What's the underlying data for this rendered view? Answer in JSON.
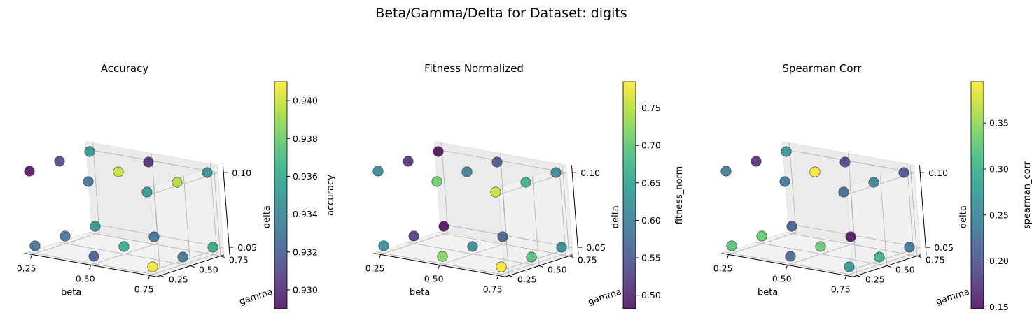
{
  "figure": {
    "suptitle": "Beta/Gamma/Delta for Dataset: digits"
  },
  "chart_data": [
    {
      "type": "scatter",
      "title": "Accuracy",
      "xlabel": "beta",
      "ylabel": "gamma",
      "zlabel": "delta",
      "colorbar_label": "accuracy",
      "colormap": "viridis",
      "clim": [
        0.929,
        0.941
      ],
      "colorbar_ticks": [
        "0.930",
        "0.932",
        "0.934",
        "0.936",
        "0.938",
        "0.940"
      ],
      "x_ticks": [
        "0.25",
        "0.50",
        "0.75"
      ],
      "y_ticks": [
        "0.25",
        "0.50",
        "0.75"
      ],
      "z_ticks": [
        "0.05",
        "0.10"
      ],
      "points": [
        {
          "beta": 0.25,
          "gamma": 0.25,
          "delta": 0.05,
          "value": 0.933
        },
        {
          "beta": 0.5,
          "gamma": 0.25,
          "delta": 0.05,
          "value": 0.932
        },
        {
          "beta": 0.75,
          "gamma": 0.25,
          "delta": 0.05,
          "value": 0.941
        },
        {
          "beta": 0.25,
          "gamma": 0.5,
          "delta": 0.05,
          "value": 0.933
        },
        {
          "beta": 0.5,
          "gamma": 0.5,
          "delta": 0.05,
          "value": 0.936
        },
        {
          "beta": 0.75,
          "gamma": 0.5,
          "delta": 0.05,
          "value": 0.933
        },
        {
          "beta": 0.25,
          "gamma": 0.75,
          "delta": 0.05,
          "value": 0.935
        },
        {
          "beta": 0.5,
          "gamma": 0.75,
          "delta": 0.05,
          "value": 0.933
        },
        {
          "beta": 0.75,
          "gamma": 0.75,
          "delta": 0.05,
          "value": 0.936
        },
        {
          "beta": 0.25,
          "gamma": 0.25,
          "delta": 0.1,
          "value": 0.929
        },
        {
          "beta": 0.5,
          "gamma": 0.25,
          "delta": 0.1,
          "value": 0.933
        },
        {
          "beta": 0.75,
          "gamma": 0.25,
          "delta": 0.1,
          "value": 0.935
        },
        {
          "beta": 0.25,
          "gamma": 0.5,
          "delta": 0.1,
          "value": 0.931
        },
        {
          "beta": 0.5,
          "gamma": 0.5,
          "delta": 0.1,
          "value": 0.94
        },
        {
          "beta": 0.75,
          "gamma": 0.5,
          "delta": 0.1,
          "value": 0.9395
        },
        {
          "beta": 0.25,
          "gamma": 0.75,
          "delta": 0.1,
          "value": 0.935
        },
        {
          "beta": 0.5,
          "gamma": 0.75,
          "delta": 0.1,
          "value": 0.93
        },
        {
          "beta": 0.75,
          "gamma": 0.75,
          "delta": 0.1,
          "value": 0.9345
        }
      ]
    },
    {
      "type": "scatter",
      "title": "Fitness Normalized",
      "xlabel": "beta",
      "ylabel": "gamma",
      "zlabel": "delta",
      "colorbar_label": "fitness_norm",
      "colormap": "viridis",
      "clim": [
        0.482,
        0.785
      ],
      "colorbar_ticks": [
        "0.50",
        "0.55",
        "0.60",
        "0.65",
        "0.70",
        "0.75"
      ],
      "x_ticks": [
        "0.25",
        "0.50",
        "0.75"
      ],
      "y_ticks": [
        "0.25",
        "0.50",
        "0.75"
      ],
      "z_ticks": [
        "0.05",
        "0.10"
      ],
      "points": [
        {
          "beta": 0.25,
          "gamma": 0.25,
          "delta": 0.05,
          "value": 0.62
        },
        {
          "beta": 0.5,
          "gamma": 0.25,
          "delta": 0.05,
          "value": 0.72
        },
        {
          "beta": 0.75,
          "gamma": 0.25,
          "delta": 0.05,
          "value": 0.785
        },
        {
          "beta": 0.25,
          "gamma": 0.5,
          "delta": 0.05,
          "value": 0.52
        },
        {
          "beta": 0.5,
          "gamma": 0.5,
          "delta": 0.05,
          "value": 0.61
        },
        {
          "beta": 0.75,
          "gamma": 0.5,
          "delta": 0.05,
          "value": 0.69
        },
        {
          "beta": 0.25,
          "gamma": 0.75,
          "delta": 0.05,
          "value": 0.482
        },
        {
          "beta": 0.5,
          "gamma": 0.75,
          "delta": 0.05,
          "value": 0.56
        },
        {
          "beta": 0.75,
          "gamma": 0.75,
          "delta": 0.05,
          "value": 0.62
        },
        {
          "beta": 0.25,
          "gamma": 0.25,
          "delta": 0.1,
          "value": 0.61
        },
        {
          "beta": 0.5,
          "gamma": 0.25,
          "delta": 0.1,
          "value": 0.71
        },
        {
          "beta": 0.75,
          "gamma": 0.25,
          "delta": 0.1,
          "value": 0.76
        },
        {
          "beta": 0.25,
          "gamma": 0.5,
          "delta": 0.1,
          "value": 0.51
        },
        {
          "beta": 0.5,
          "gamma": 0.5,
          "delta": 0.1,
          "value": 0.6
        },
        {
          "beta": 0.75,
          "gamma": 0.5,
          "delta": 0.1,
          "value": 0.67
        },
        {
          "beta": 0.25,
          "gamma": 0.75,
          "delta": 0.1,
          "value": 0.482
        },
        {
          "beta": 0.5,
          "gamma": 0.75,
          "delta": 0.1,
          "value": 0.55
        },
        {
          "beta": 0.75,
          "gamma": 0.75,
          "delta": 0.1,
          "value": 0.61
        }
      ]
    },
    {
      "type": "scatter",
      "title": "Spearman Corr",
      "xlabel": "beta",
      "ylabel": "gamma",
      "zlabel": "delta",
      "colorbar_label": "spearman_corr",
      "colormap": "viridis",
      "clim": [
        0.148,
        0.395
      ],
      "colorbar_ticks": [
        "0.15",
        "0.20",
        "0.25",
        "0.30",
        "0.35"
      ],
      "x_ticks": [
        "0.25",
        "0.50",
        "0.75"
      ],
      "y_ticks": [
        "0.25",
        "0.50",
        "0.75"
      ],
      "z_ticks": [
        "0.05",
        "0.10"
      ],
      "points": [
        {
          "beta": 0.25,
          "gamma": 0.25,
          "delta": 0.05,
          "value": 0.32
        },
        {
          "beta": 0.5,
          "gamma": 0.25,
          "delta": 0.05,
          "value": 0.22
        },
        {
          "beta": 0.75,
          "gamma": 0.25,
          "delta": 0.05,
          "value": 0.27
        },
        {
          "beta": 0.25,
          "gamma": 0.5,
          "delta": 0.05,
          "value": 0.33
        },
        {
          "beta": 0.5,
          "gamma": 0.5,
          "delta": 0.05,
          "value": 0.33
        },
        {
          "beta": 0.75,
          "gamma": 0.5,
          "delta": 0.05,
          "value": 0.3
        },
        {
          "beta": 0.25,
          "gamma": 0.75,
          "delta": 0.05,
          "value": 0.21
        },
        {
          "beta": 0.5,
          "gamma": 0.75,
          "delta": 0.05,
          "value": 0.15
        },
        {
          "beta": 0.75,
          "gamma": 0.75,
          "delta": 0.05,
          "value": 0.23
        },
        {
          "beta": 0.25,
          "gamma": 0.25,
          "delta": 0.1,
          "value": 0.24
        },
        {
          "beta": 0.5,
          "gamma": 0.25,
          "delta": 0.1,
          "value": 0.23
        },
        {
          "beta": 0.75,
          "gamma": 0.25,
          "delta": 0.1,
          "value": 0.22
        },
        {
          "beta": 0.25,
          "gamma": 0.5,
          "delta": 0.1,
          "value": 0.17
        },
        {
          "beta": 0.5,
          "gamma": 0.5,
          "delta": 0.1,
          "value": 0.395
        },
        {
          "beta": 0.75,
          "gamma": 0.5,
          "delta": 0.1,
          "value": 0.25
        },
        {
          "beta": 0.25,
          "gamma": 0.75,
          "delta": 0.1,
          "value": 0.27
        },
        {
          "beta": 0.5,
          "gamma": 0.75,
          "delta": 0.1,
          "value": 0.19
        },
        {
          "beta": 0.75,
          "gamma": 0.75,
          "delta": 0.1,
          "value": 0.2
        }
      ]
    }
  ]
}
